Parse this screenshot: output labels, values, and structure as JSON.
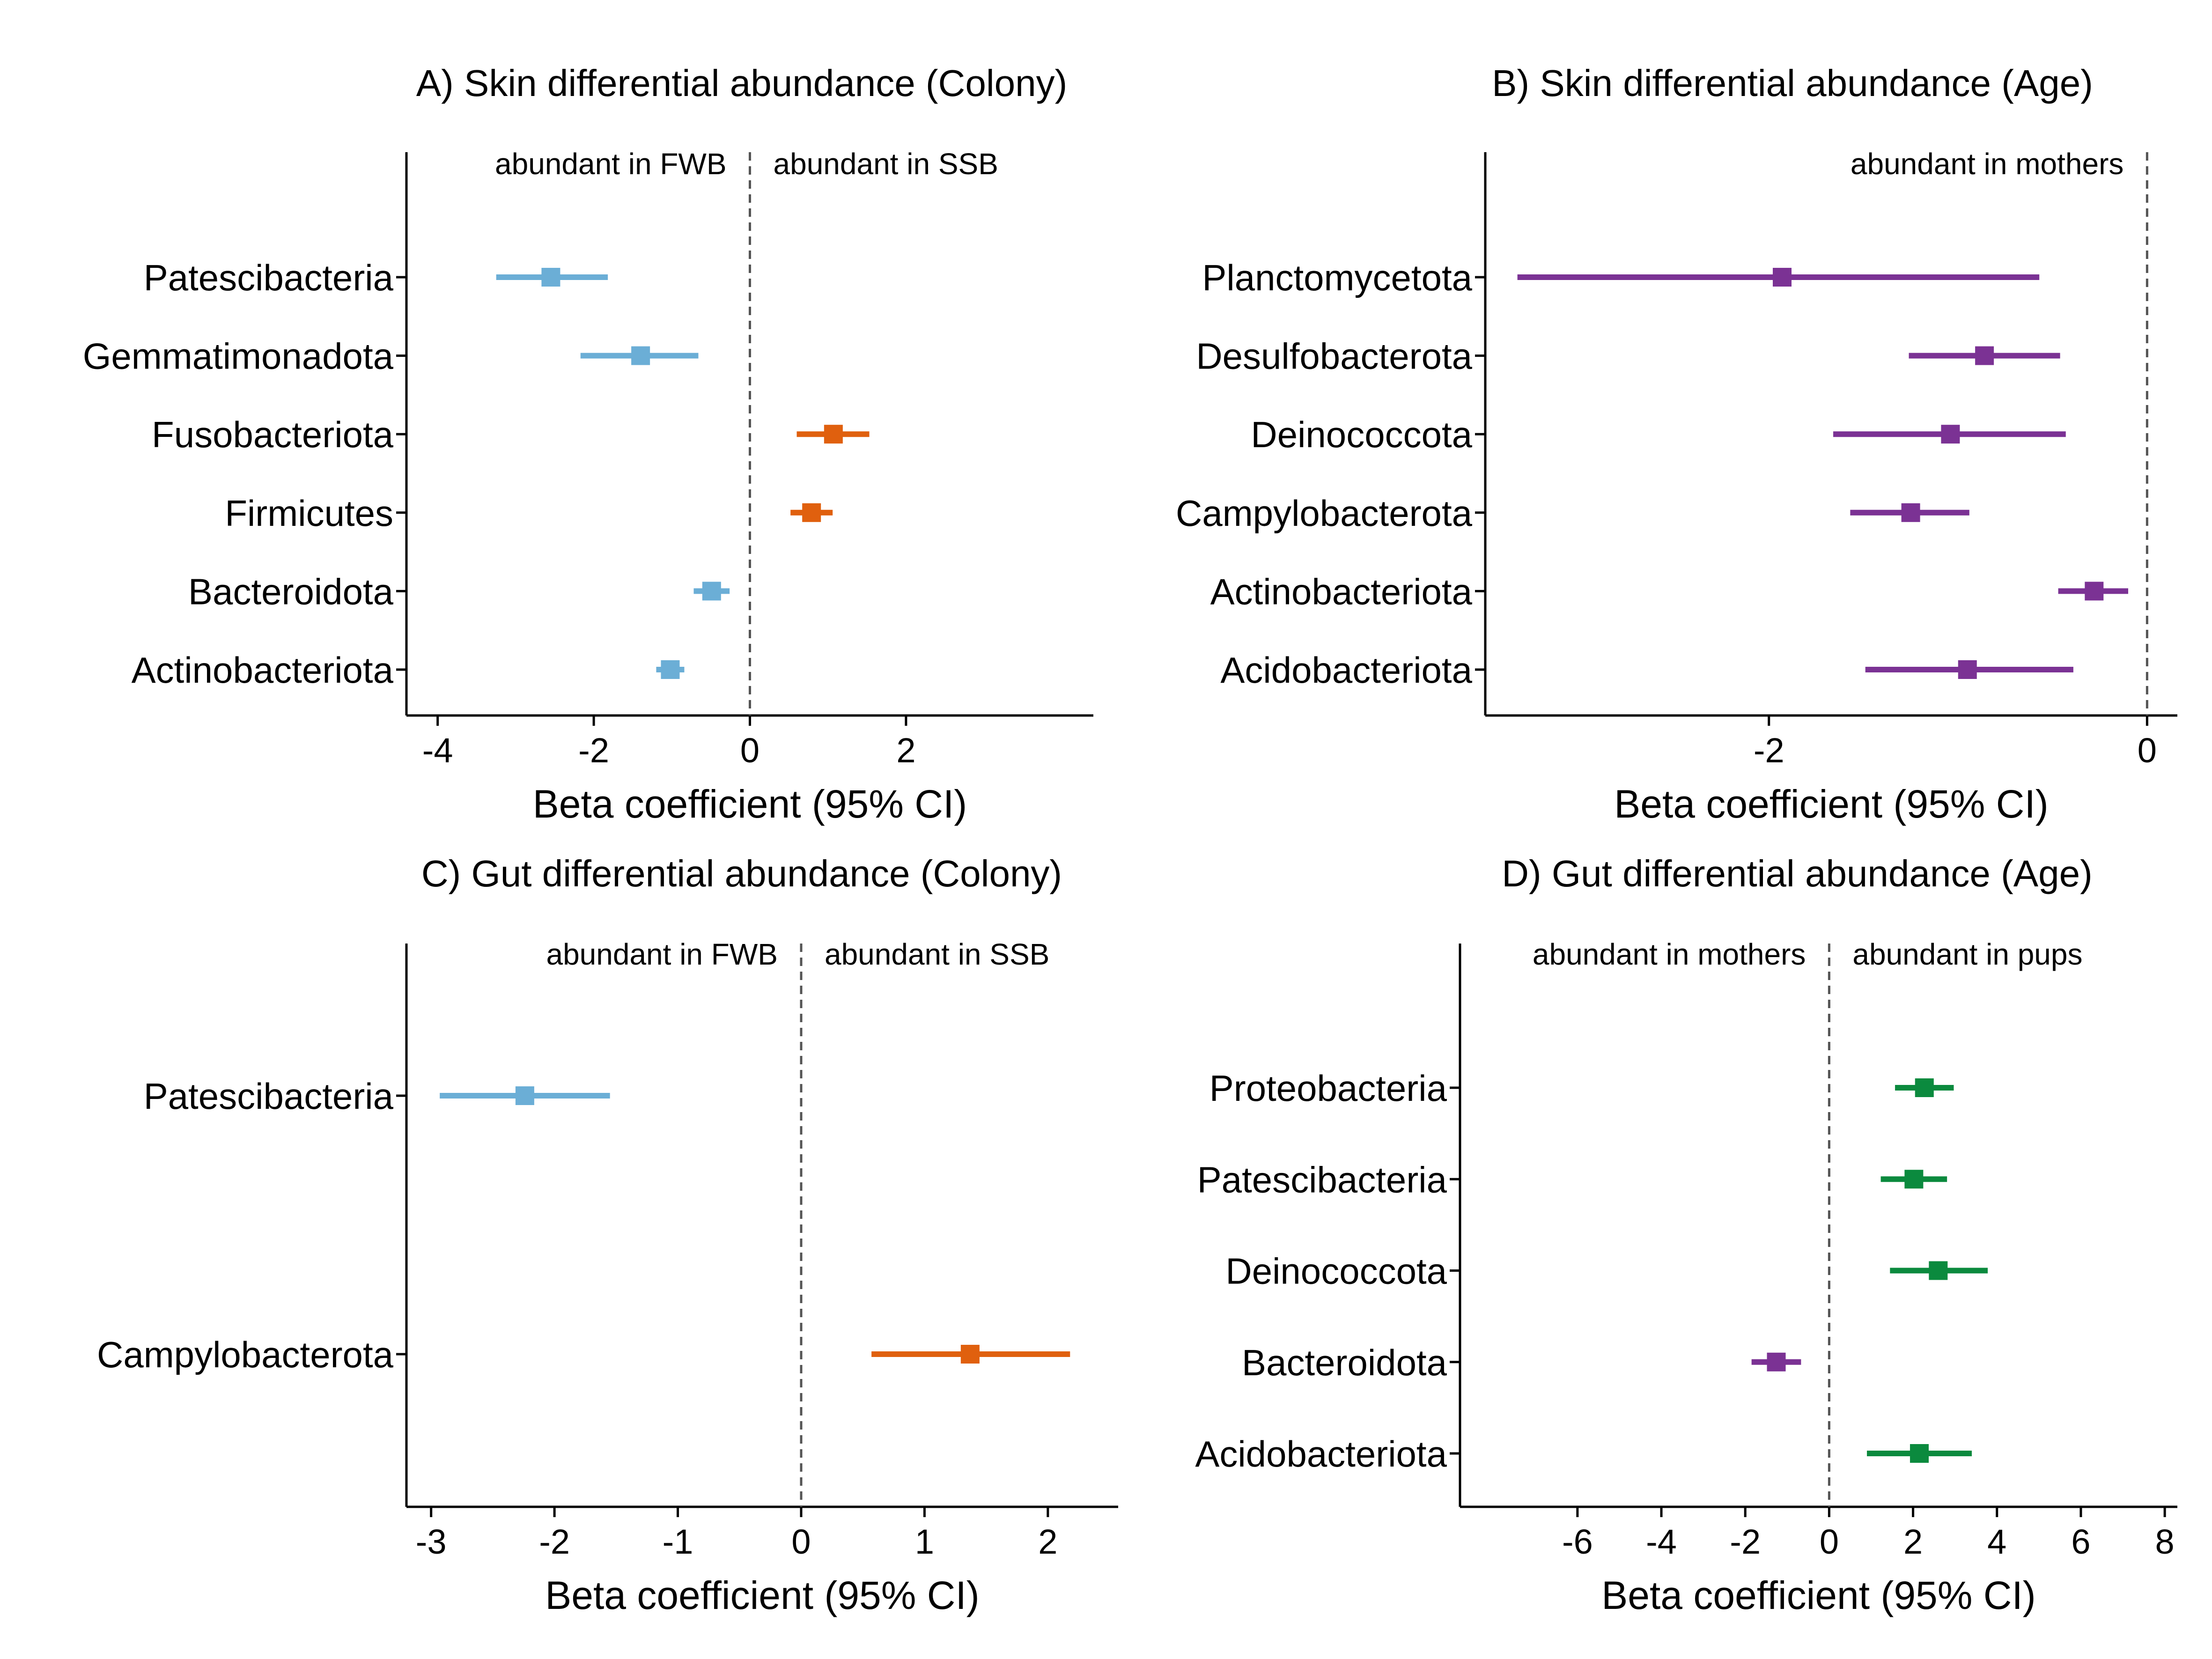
{
  "colors": {
    "ssb": "#E0600E",
    "fwb": "#6BAED6",
    "mothers": "#7B3294",
    "pups": "#0B8A3E",
    "axis": "#000000",
    "zero_line": "#555555"
  },
  "x_axis_label": "Beta coefficient (95% CI)",
  "chart_data": [
    {
      "type": "forest",
      "title": "A) Skin differential abundance (Colony)",
      "xlabel": "Beta coefficient (95% CI)",
      "xlim": [
        -4.4,
        4.4
      ],
      "xticks": [
        -4,
        -2,
        0,
        2
      ],
      "annotations": [
        {
          "text": "abundant in FWB",
          "side": "left"
        },
        {
          "text": "abundant in SSB",
          "side": "right"
        }
      ],
      "categories": [
        "Patescibacteria",
        "Gemmatimonadota",
        "Fusobacteriota",
        "Firmicutes",
        "Bacteroidota",
        "Actinobacteriota"
      ],
      "estimate": [
        -2.55,
        -1.4,
        1.07,
        0.79,
        -0.49,
        -1.02
      ],
      "ci_low": [
        -3.25,
        -2.17,
        0.6,
        0.52,
        -0.72,
        -1.2
      ],
      "ci_high": [
        -1.82,
        -0.66,
        1.53,
        1.06,
        -0.26,
        -0.84
      ],
      "group": [
        "fwb",
        "fwb",
        "ssb",
        "ssb",
        "fwb",
        "fwb"
      ]
    },
    {
      "type": "forest",
      "title": "B) Skin differential abundance (Age)",
      "xlabel": "Beta coefficient (95% CI)",
      "xlim": [
        -3.5,
        0.16
      ],
      "xticks": [
        -2,
        0
      ],
      "annotations": [
        {
          "text": "abundant in mothers",
          "side": "left"
        }
      ],
      "categories": [
        "Planctomycetota",
        "Desulfobacterota",
        "Deinococcota",
        "Campylobacterota",
        "Actinobacteriota",
        "Acidobacteriota"
      ],
      "estimate": [
        -1.93,
        -0.86,
        -1.04,
        -1.25,
        -0.28,
        -0.95
      ],
      "ci_low": [
        -3.33,
        -1.26,
        -1.66,
        -1.57,
        -0.47,
        -1.49
      ],
      "ci_high": [
        -0.57,
        -0.46,
        -0.43,
        -0.94,
        -0.1,
        -0.39
      ],
      "group": [
        "mothers",
        "mothers",
        "mothers",
        "mothers",
        "mothers",
        "mothers"
      ]
    },
    {
      "type": "forest",
      "title": "C) Gut differential abundance (Colony)",
      "xlabel": "Beta coefficient (95% CI)",
      "xlim": [
        -3.2,
        2.57
      ],
      "xticks": [
        -3,
        -2,
        -1,
        0,
        1,
        2
      ],
      "annotations": [
        {
          "text": "abundant in FWB",
          "side": "left"
        },
        {
          "text": "abundant in SSB",
          "side": "right"
        }
      ],
      "categories": [
        "Patescibacteria",
        "Campylobacterota"
      ],
      "estimate": [
        -2.24,
        1.37
      ],
      "ci_low": [
        -2.93,
        0.57
      ],
      "ci_high": [
        -1.55,
        2.18
      ],
      "group": [
        "fwb",
        "ssb"
      ]
    },
    {
      "type": "forest",
      "title": "D) Gut differential abundance (Age)",
      "xlabel": "Beta coefficient (95% CI)",
      "xlim": [
        -8.8,
        8.3
      ],
      "xticks": [
        -6,
        -4,
        -2,
        0,
        2,
        4,
        6,
        8
      ],
      "annotations": [
        {
          "text": "abundant in mothers",
          "side": "left"
        },
        {
          "text": "abundant in pups",
          "side": "right"
        }
      ],
      "categories": [
        "Proteobacteria",
        "Patescibacteria",
        "Deinococcota",
        "Bacteroidota",
        "Acidobacteriota"
      ],
      "estimate": [
        2.27,
        2.02,
        2.6,
        -1.26,
        2.15
      ],
      "ci_low": [
        1.57,
        1.23,
        1.45,
        -1.85,
        0.9
      ],
      "ci_high": [
        2.97,
        2.81,
        3.78,
        -0.67,
        3.4
      ],
      "group": [
        "pups",
        "pups",
        "pups",
        "mothers",
        "pups"
      ]
    }
  ]
}
